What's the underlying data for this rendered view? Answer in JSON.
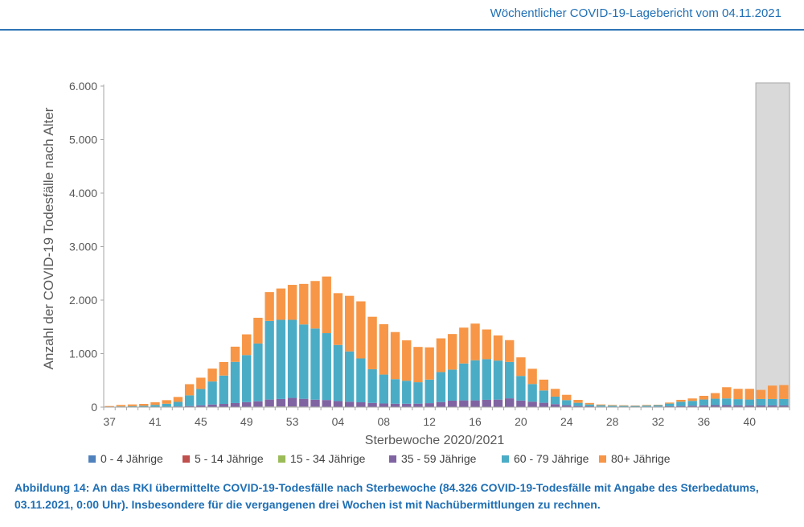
{
  "header": {
    "title": "Wöchentlicher COVID-19-Lagebericht vom 04.11.2021"
  },
  "caption": {
    "text": "Abbildung 14: An das RKI übermittelte COVID-19-Todesfälle nach Sterbewoche (84.326 COVID-19-Todesfälle mit Angabe des Sterbedatums, 03.11.2021, 0:00 Uhr). Insbesondere für die vergangenen drei Wochen ist mit Nachübermittlungen zu rechnen."
  },
  "chart_data": {
    "type": "bar",
    "stacked": true,
    "xlabel": "Sterbewoche 2020/2021",
    "ylabel": "Anzahl der COVID-19 Todesfälle nach Alter",
    "ylim": [
      0,
      6000
    ],
    "yticks": [
      0,
      1000,
      2000,
      3000,
      4000,
      5000,
      6000
    ],
    "ytick_labels": [
      "0",
      "1.000",
      "2.000",
      "3.000",
      "4.000",
      "5.000",
      "6.000"
    ],
    "xtick_labels": [
      "37",
      "41",
      "45",
      "49",
      "53",
      "04",
      "08",
      "12",
      "16",
      "20",
      "24",
      "28",
      "32",
      "36",
      "40"
    ],
    "shaded_last_weeks": 3,
    "legend_position": "bottom",
    "categories": [
      "37",
      "38",
      "39",
      "40",
      "41",
      "42",
      "43",
      "44",
      "45",
      "46",
      "47",
      "48",
      "49",
      "50",
      "51",
      "52",
      "53",
      "01",
      "02",
      "03",
      "04",
      "05",
      "06",
      "07",
      "08",
      "09",
      "10",
      "11",
      "12",
      "13",
      "14",
      "15",
      "16",
      "17",
      "18",
      "19",
      "20",
      "21",
      "22",
      "23",
      "24",
      "25",
      "26",
      "27",
      "28",
      "29",
      "30",
      "31",
      "32",
      "33",
      "34",
      "35",
      "36",
      "37",
      "38",
      "39",
      "40",
      "41",
      "42",
      "43"
    ],
    "series": [
      {
        "name": "0 - 4 Jährige",
        "color": "#4f81bd",
        "values": [
          0,
          0,
          0,
          0,
          0,
          0,
          0,
          0,
          0,
          0,
          0,
          0,
          1,
          1,
          1,
          1,
          1,
          1,
          1,
          1,
          1,
          1,
          1,
          0,
          0,
          0,
          0,
          0,
          0,
          0,
          0,
          0,
          0,
          0,
          0,
          0,
          0,
          0,
          0,
          0,
          0,
          0,
          0,
          0,
          0,
          0,
          0,
          0,
          0,
          0,
          0,
          0,
          0,
          0,
          0,
          0,
          0,
          0,
          0,
          0
        ]
      },
      {
        "name": "5 - 14 Jährige",
        "color": "#c0504d",
        "values": [
          0,
          0,
          0,
          0,
          0,
          0,
          0,
          0,
          0,
          0,
          0,
          0,
          0,
          0,
          1,
          1,
          1,
          0,
          0,
          0,
          0,
          0,
          0,
          0,
          0,
          0,
          0,
          0,
          0,
          0,
          0,
          0,
          0,
          0,
          0,
          0,
          0,
          0,
          0,
          0,
          0,
          0,
          0,
          0,
          0,
          0,
          0,
          0,
          0,
          0,
          0,
          0,
          0,
          0,
          0,
          0,
          0,
          0,
          0,
          0
        ]
      },
      {
        "name": "15 - 34 Jährige",
        "color": "#9bbb59",
        "values": [
          0,
          0,
          0,
          0,
          0,
          0,
          1,
          2,
          3,
          4,
          5,
          6,
          7,
          8,
          9,
          10,
          10,
          9,
          8,
          7,
          6,
          5,
          4,
          3,
          3,
          3,
          3,
          3,
          4,
          5,
          6,
          6,
          6,
          6,
          5,
          4,
          3,
          2,
          1,
          1,
          1,
          1,
          0,
          0,
          0,
          0,
          0,
          1,
          1,
          1,
          1,
          2,
          2,
          2,
          2,
          2,
          2,
          2,
          2,
          2
        ]
      },
      {
        "name": "35 - 59 Jährige",
        "color": "#8064a2",
        "values": [
          2,
          3,
          3,
          4,
          6,
          8,
          12,
          18,
          30,
          45,
          55,
          70,
          85,
          100,
          130,
          140,
          160,
          145,
          130,
          125,
          105,
          95,
          85,
          75,
          65,
          60,
          60,
          62,
          70,
          90,
          115,
          120,
          120,
          130,
          135,
          160,
          120,
          100,
          80,
          55,
          35,
          20,
          15,
          10,
          8,
          7,
          6,
          8,
          10,
          15,
          20,
          25,
          30,
          35,
          35,
          32,
          30,
          30,
          30,
          30
        ]
      },
      {
        "name": "60 - 79 Jährige",
        "color": "#4bacc6",
        "values": [
          5,
          10,
          15,
          20,
          35,
          55,
          85,
          200,
          305,
          430,
          530,
          770,
          880,
          1080,
          1470,
          1480,
          1460,
          1390,
          1330,
          1250,
          1050,
          940,
          820,
          630,
          540,
          460,
          430,
          400,
          440,
          560,
          580,
          690,
          750,
          760,
          730,
          680,
          460,
          330,
          230,
          140,
          95,
          60,
          35,
          25,
          20,
          18,
          16,
          20,
          25,
          50,
          80,
          90,
          110,
          120,
          125,
          115,
          110,
          120,
          120,
          120
        ]
      },
      {
        "name": "80+ Jährige",
        "color": "#f79646",
        "values": [
          13,
          27,
          32,
          36,
          49,
          67,
          92,
          209,
          212,
          241,
          253,
          284,
          387,
          481,
          538,
          585,
          653,
          758,
          888,
          1058,
          968,
          1039,
          1067,
          981,
          942,
          880,
          755,
          660,
          603,
          630,
          665,
          670,
          685,
          555,
          470,
          408,
          347,
          285,
          203,
          145,
          99,
          54,
          28,
          15,
          12,
          10,
          8,
          11,
          9,
          19,
          35,
          45,
          69,
          105,
          210,
          193,
          200,
          170,
          250,
          260
        ]
      }
    ]
  }
}
